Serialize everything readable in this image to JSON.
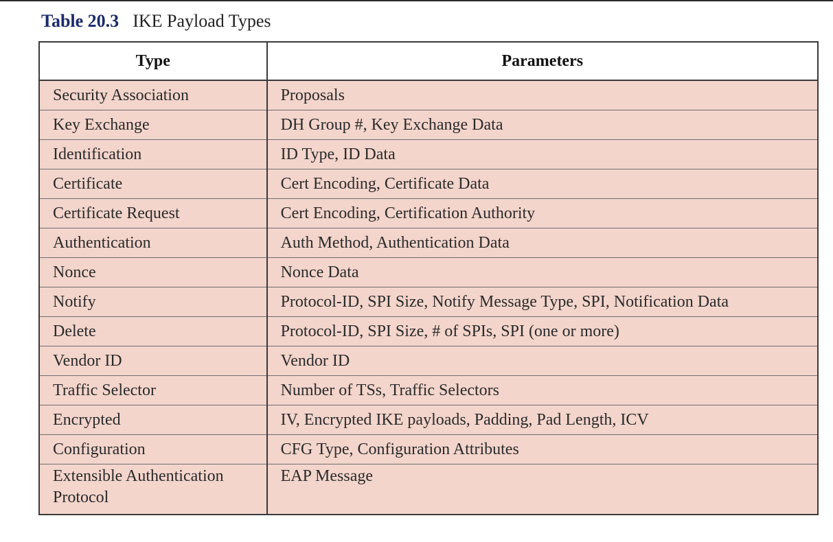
{
  "caption": {
    "label": "Table 20.3",
    "title": "IKE Payload Types"
  },
  "table": {
    "headers": [
      "Type",
      "Parameters"
    ],
    "rows": [
      [
        "Security Association",
        "Proposals"
      ],
      [
        "Key Exchange",
        "DH Group #, Key Exchange Data"
      ],
      [
        "Identification",
        "ID Type, ID Data"
      ],
      [
        "Certificate",
        "Cert Encoding, Certificate Data"
      ],
      [
        "Certificate Request",
        "Cert Encoding, Certification Authority"
      ],
      [
        "Authentication",
        "Auth Method, Authentication Data"
      ],
      [
        "Nonce",
        "Nonce Data"
      ],
      [
        "Notify",
        "Protocol-ID, SPI Size, Notify Message Type, SPI, Notification Data"
      ],
      [
        "Delete",
        "Protocol-ID, SPI Size, # of SPIs, SPI (one or more)"
      ],
      [
        "Vendor ID",
        "Vendor ID"
      ],
      [
        "Traffic Selector",
        "Number of TSs, Traffic Selectors"
      ],
      [
        "Encrypted",
        "IV, Encrypted IKE payloads, Padding, Pad Length, ICV"
      ],
      [
        "Configuration",
        "CFG Type, Configuration Attributes"
      ],
      [
        "Extensible Authentication Protocol",
        "EAP Message"
      ]
    ]
  },
  "colors": {
    "caption_label": "#1b2a6b",
    "row_fill": "#f3d5cc",
    "border": "#3a3a3a"
  }
}
